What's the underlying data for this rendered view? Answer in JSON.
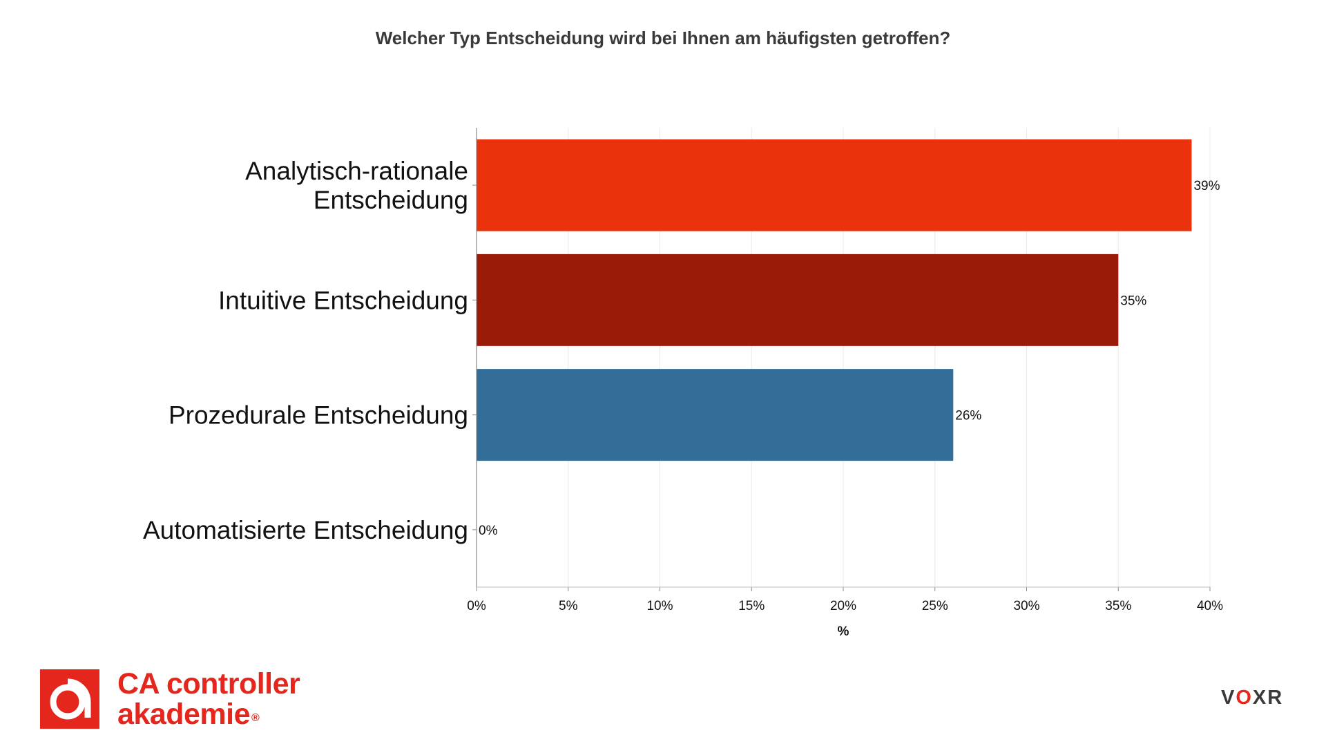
{
  "chart_data": {
    "type": "bar",
    "orientation": "horizontal",
    "title": "Welcher Typ Entscheidung wird bei Ihnen am häufigsten getroffen?",
    "categories": [
      [
        "Analytisch-rationale",
        "Entscheidung"
      ],
      [
        "Intuitive Entscheidung"
      ],
      [
        "Prozedurale Entscheidung"
      ],
      [
        "Automatisierte Entscheidung"
      ]
    ],
    "values": [
      39,
      35,
      26,
      0
    ],
    "data_labels": [
      "39%",
      "35%",
      "26%",
      "0%"
    ],
    "colors": [
      "#ea320d",
      "#9a1c08",
      "#336e98",
      "#b0b0b0"
    ],
    "xlabel": "%",
    "ylabel": "",
    "xlim": [
      0,
      40
    ],
    "xticks": [
      0,
      5,
      10,
      15,
      20,
      25,
      30,
      35,
      40
    ],
    "xtick_labels": [
      "0%",
      "5%",
      "10%",
      "15%",
      "20%",
      "25%",
      "30%",
      "35%",
      "40%"
    ],
    "grid": "vertical"
  },
  "branding": {
    "logo_line1": "CA controller",
    "logo_line2": "akademie",
    "logo_registered": "®",
    "logo_mark_letter": "a",
    "voxr_v": "V",
    "voxr_o": "O",
    "voxr_xr": "XR",
    "brand_color": "#e4261c"
  }
}
